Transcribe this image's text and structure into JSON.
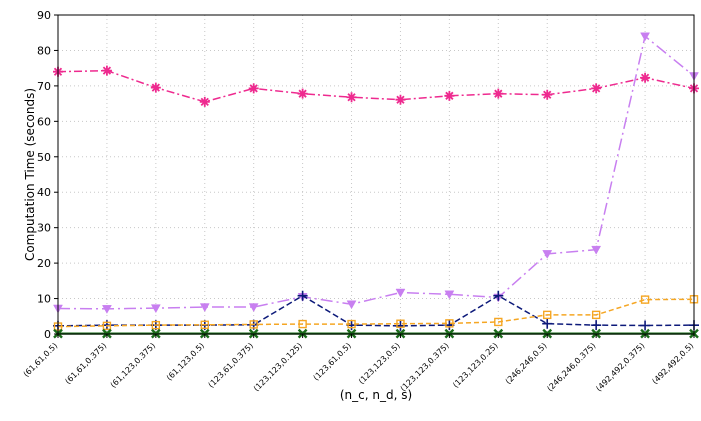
{
  "chart_data": {
    "type": "line",
    "categories": [
      "(61,61,0.5)",
      "(61,61,0.375)",
      "(61,123,0.375)",
      "(61,123,0.5)",
      "(123,61,0.375)",
      "(123,123,0.125)",
      "(123,61,0.5)",
      "(123,123,0.5)",
      "(123,123,0.375)",
      "(123,123,0.25)",
      "(246,246,0.5)",
      "(246,246,0.375)",
      "(492,492,0.375)",
      "(492,492,0.5)"
    ],
    "xlabel": "(n_c, n_d, s)",
    "ylabel": "Computation Time (seconds)",
    "ylim": [
      0,
      90
    ],
    "yticks": [
      0,
      10,
      20,
      30,
      40,
      50,
      60,
      70,
      80,
      90
    ],
    "grid": true,
    "series": [
      {
        "color": "#ee2a8f",
        "dash": "8,3,2,3",
        "marker": "star",
        "values": [
          74.0,
          74.3,
          69.5,
          65.5,
          69.3,
          67.8,
          66.8,
          66.1,
          67.2,
          67.8,
          67.5,
          69.3,
          72.3,
          69.3
        ]
      },
      {
        "color": "#c87ff0",
        "dash": "12,4,2,4",
        "marker": "triangle-down",
        "values": [
          7.2,
          7.1,
          7.3,
          7.6,
          7.6,
          10.5,
          8.4,
          11.7,
          11.2,
          10.3,
          22.6,
          23.8,
          84.0,
          72.8
        ]
      },
      {
        "color": "#0d1a7a",
        "dash": "6,3",
        "marker": "plus",
        "values": [
          2.3,
          2.5,
          2.5,
          2.5,
          2.6,
          10.8,
          2.5,
          2.3,
          2.5,
          10.8,
          2.9,
          2.5,
          2.4,
          2.5
        ]
      },
      {
        "color": "#f5a623",
        "dash": "5,3",
        "marker": "square",
        "values": [
          2.1,
          2.3,
          2.5,
          2.6,
          2.7,
          2.8,
          2.8,
          2.9,
          3.0,
          3.4,
          5.4,
          5.4,
          9.7,
          9.8
        ]
      },
      {
        "color": "#1a6b1a",
        "dash": "",
        "marker": "x",
        "values": [
          0.1,
          0.1,
          0.1,
          0.1,
          0.1,
          0.1,
          0.1,
          0.1,
          0.1,
          0.1,
          0.1,
          0.1,
          0.1,
          0.1
        ]
      }
    ]
  }
}
